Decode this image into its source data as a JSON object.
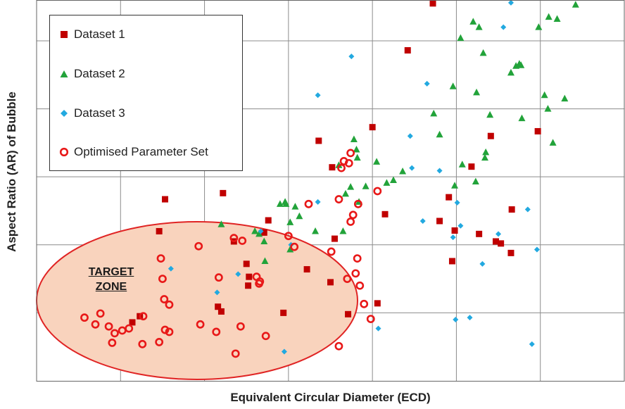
{
  "chart_data": {
    "type": "scatter",
    "title": "",
    "xlabel": "Equivalent Circular Diameter  (ECD)",
    "ylabel": "Aspect Ratio (AR) of Bubble",
    "xlim": [
      0,
      7
    ],
    "ylim": [
      0,
      5.6
    ],
    "grid": true,
    "legend_position": "top-left",
    "annotation": {
      "label_line1": "TARGET",
      "label_line2": "ZONE",
      "fill": "#f9d3bd",
      "stroke": "#e02424"
    },
    "series": [
      {
        "name": "Dataset 1",
        "marker": "square",
        "color": "#c00000",
        "points": [
          [
            1.53,
            2.67
          ],
          [
            1.46,
            2.2
          ],
          [
            1.14,
            0.86
          ],
          [
            2.22,
            2.76
          ],
          [
            2.35,
            2.05
          ],
          [
            2.5,
            1.72
          ],
          [
            2.52,
            1.4
          ],
          [
            2.53,
            1.53
          ],
          [
            2.16,
            1.09
          ],
          [
            2.2,
            1.02
          ],
          [
            2.76,
            2.36
          ],
          [
            2.94,
            1.0
          ],
          [
            3.22,
            1.64
          ],
          [
            3.36,
            3.53
          ],
          [
            3.52,
            3.14
          ],
          [
            3.55,
            2.09
          ],
          [
            3.5,
            1.45
          ],
          [
            3.71,
            0.98
          ],
          [
            4.06,
            1.14
          ],
          [
            4.0,
            3.73
          ],
          [
            4.15,
            2.45
          ],
          [
            4.42,
            4.86
          ],
          [
            4.8,
            2.35
          ],
          [
            4.72,
            5.55
          ],
          [
            4.91,
            2.7
          ],
          [
            4.95,
            1.76
          ],
          [
            4.98,
            2.21
          ],
          [
            5.18,
            3.15
          ],
          [
            5.27,
            2.16
          ],
          [
            5.41,
            3.6
          ],
          [
            5.47,
            2.05
          ],
          [
            5.53,
            2.02
          ],
          [
            5.65,
            1.88
          ],
          [
            5.66,
            2.52
          ],
          [
            5.97,
            3.67
          ],
          [
            2.71,
            2.18
          ],
          [
            1.23,
            0.95
          ]
        ]
      },
      {
        "name": "Dataset 2",
        "marker": "triangle",
        "color": "#22a33a",
        "points": [
          [
            2.2,
            2.3
          ],
          [
            2.6,
            2.2
          ],
          [
            2.65,
            2.16
          ],
          [
            2.71,
            2.05
          ],
          [
            2.72,
            1.76
          ],
          [
            2.9,
            2.6
          ],
          [
            2.96,
            2.63
          ],
          [
            2.97,
            2.6
          ],
          [
            3.08,
            2.56
          ],
          [
            3.13,
            2.42
          ],
          [
            3.02,
            2.33
          ],
          [
            3.02,
            1.93
          ],
          [
            3.32,
            2.2
          ],
          [
            3.6,
            3.17
          ],
          [
            3.68,
            2.75
          ],
          [
            3.65,
            2.2
          ],
          [
            3.81,
            3.4
          ],
          [
            3.74,
            2.85
          ],
          [
            3.78,
            3.55
          ],
          [
            3.82,
            3.28
          ],
          [
            3.92,
            2.86
          ],
          [
            3.84,
            2.63
          ],
          [
            4.05,
            3.22
          ],
          [
            4.17,
            2.91
          ],
          [
            4.25,
            2.95
          ],
          [
            4.36,
            3.08
          ],
          [
            4.73,
            3.93
          ],
          [
            4.8,
            3.62
          ],
          [
            4.96,
            4.33
          ],
          [
            4.98,
            2.87
          ],
          [
            5.07,
            3.18
          ],
          [
            5.05,
            5.04
          ],
          [
            5.2,
            5.28
          ],
          [
            5.27,
            5.2
          ],
          [
            5.23,
            2.93
          ],
          [
            5.24,
            4.24
          ],
          [
            5.32,
            4.82
          ],
          [
            5.35,
            3.36
          ],
          [
            5.4,
            3.91
          ],
          [
            5.34,
            3.28
          ],
          [
            5.65,
            4.53
          ],
          [
            5.71,
            4.63
          ],
          [
            5.75,
            4.66
          ],
          [
            5.77,
            4.64
          ],
          [
            5.78,
            3.86
          ],
          [
            5.98,
            5.2
          ],
          [
            6.1,
            5.35
          ],
          [
            6.09,
            4.0
          ],
          [
            6.05,
            4.2
          ],
          [
            6.2,
            5.32
          ],
          [
            6.15,
            3.5
          ],
          [
            6.29,
            4.15
          ],
          [
            6.42,
            5.53
          ]
        ]
      },
      {
        "name": "Dataset 3",
        "marker": "diamond",
        "color": "#22a9e0",
        "points": [
          [
            1.6,
            1.65
          ],
          [
            2.15,
            1.3
          ],
          [
            2.4,
            1.57
          ],
          [
            2.67,
            2.2
          ],
          [
            2.95,
            0.43
          ],
          [
            3.03,
            2.0
          ],
          [
            3.35,
            4.2
          ],
          [
            3.35,
            2.63
          ],
          [
            3.75,
            4.77
          ],
          [
            4.07,
            0.77
          ],
          [
            4.45,
            3.6
          ],
          [
            4.47,
            3.13
          ],
          [
            4.6,
            2.35
          ],
          [
            4.65,
            4.37
          ],
          [
            4.8,
            3.09
          ],
          [
            4.96,
            2.11
          ],
          [
            4.99,
            0.9
          ],
          [
            5.01,
            2.62
          ],
          [
            5.05,
            2.28
          ],
          [
            5.16,
            0.93
          ],
          [
            5.31,
            1.72
          ],
          [
            5.5,
            2.16
          ],
          [
            5.56,
            5.2
          ],
          [
            5.85,
            2.52
          ],
          [
            5.9,
            0.54
          ],
          [
            5.96,
            1.93
          ],
          [
            5.65,
            5.56
          ]
        ]
      },
      {
        "name": "Optimised Parameter Set",
        "marker": "ring",
        "color": "#e81818",
        "points": [
          [
            0.57,
            0.93
          ],
          [
            0.7,
            0.83
          ],
          [
            0.76,
            0.99
          ],
          [
            0.86,
            0.8
          ],
          [
            0.9,
            0.56
          ],
          [
            0.93,
            0.7
          ],
          [
            1.02,
            0.74
          ],
          [
            1.1,
            0.77
          ],
          [
            1.26,
            0.54
          ],
          [
            1.27,
            0.95
          ],
          [
            1.46,
            0.57
          ],
          [
            1.48,
            1.8
          ],
          [
            1.5,
            1.5
          ],
          [
            1.52,
            1.2
          ],
          [
            1.53,
            0.75
          ],
          [
            1.58,
            0.72
          ],
          [
            1.58,
            1.12
          ],
          [
            1.93,
            1.98
          ],
          [
            1.95,
            0.83
          ],
          [
            2.14,
            0.72
          ],
          [
            2.17,
            1.52
          ],
          [
            2.35,
            2.1
          ],
          [
            2.45,
            2.06
          ],
          [
            2.43,
            0.8
          ],
          [
            2.65,
            1.43
          ],
          [
            2.62,
            1.53
          ],
          [
            2.37,
            0.4
          ],
          [
            2.73,
            0.66
          ],
          [
            3.24,
            2.6
          ],
          [
            3.0,
            2.13
          ],
          [
            3.07,
            1.97
          ],
          [
            3.6,
            2.67
          ],
          [
            3.77,
            2.44
          ],
          [
            3.74,
            2.34
          ],
          [
            3.63,
            3.13
          ],
          [
            3.66,
            3.23
          ],
          [
            3.72,
            3.2
          ],
          [
            3.74,
            3.35
          ],
          [
            3.7,
            1.5
          ],
          [
            3.8,
            1.58
          ],
          [
            3.83,
            2.6
          ],
          [
            3.85,
            1.4
          ],
          [
            3.6,
            0.51
          ],
          [
            3.9,
            1.13
          ],
          [
            3.98,
            0.91
          ],
          [
            4.06,
            2.79
          ],
          [
            3.82,
            1.8
          ],
          [
            3.51,
            1.9
          ],
          [
            2.66,
            1.46
          ]
        ]
      }
    ]
  }
}
